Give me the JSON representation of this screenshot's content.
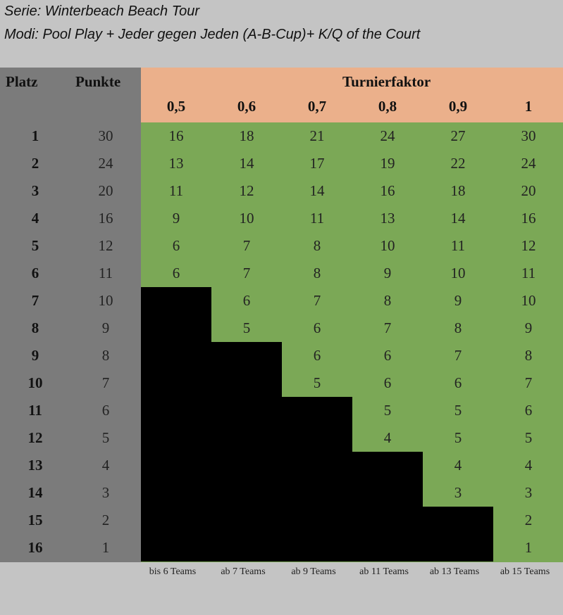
{
  "header": {
    "series_line": "Serie: Winterbeach Beach Tour",
    "modi_line": "Modi: Pool Play + Jeder gegen Jeden (A-B-Cup)+ K/Q of the Court"
  },
  "table": {
    "col_platz": "Platz",
    "col_punkte": "Punkte",
    "col_turnierfaktor": "Turnierfaktor",
    "factors": [
      "0,5",
      "0,6",
      "0,7",
      "0,8",
      "0,9",
      "1"
    ],
    "rows": [
      {
        "platz": "1",
        "punkte": "30",
        "values": [
          "16",
          "18",
          "21",
          "24",
          "27",
          "30"
        ]
      },
      {
        "platz": "2",
        "punkte": "24",
        "values": [
          "13",
          "14",
          "17",
          "19",
          "22",
          "24"
        ]
      },
      {
        "platz": "3",
        "punkte": "20",
        "values": [
          "11",
          "12",
          "14",
          "16",
          "18",
          "20"
        ]
      },
      {
        "platz": "4",
        "punkte": "16",
        "values": [
          "9",
          "10",
          "11",
          "13",
          "14",
          "16"
        ]
      },
      {
        "platz": "5",
        "punkte": "12",
        "values": [
          "6",
          "7",
          "8",
          "10",
          "11",
          "12"
        ]
      },
      {
        "platz": "6",
        "punkte": "11",
        "values": [
          "6",
          "7",
          "8",
          "9",
          "10",
          "11"
        ]
      },
      {
        "platz": "7",
        "punkte": "10",
        "values": [
          "",
          "6",
          "7",
          "8",
          "9",
          "10"
        ]
      },
      {
        "platz": "8",
        "punkte": "9",
        "values": [
          "",
          "5",
          "6",
          "7",
          "8",
          "9"
        ]
      },
      {
        "platz": "9",
        "punkte": "8",
        "values": [
          "",
          "",
          "6",
          "6",
          "7",
          "8"
        ]
      },
      {
        "platz": "10",
        "punkte": "7",
        "values": [
          "",
          "",
          "5",
          "6",
          "6",
          "7"
        ]
      },
      {
        "platz": "11",
        "punkte": "6",
        "values": [
          "",
          "",
          "",
          "5",
          "5",
          "6"
        ]
      },
      {
        "platz": "12",
        "punkte": "5",
        "values": [
          "",
          "",
          "",
          "4",
          "5",
          "5"
        ]
      },
      {
        "platz": "13",
        "punkte": "4",
        "values": [
          "",
          "",
          "",
          "",
          "4",
          "4"
        ]
      },
      {
        "platz": "14",
        "punkte": "3",
        "values": [
          "",
          "",
          "",
          "",
          "3",
          "3"
        ]
      },
      {
        "platz": "15",
        "punkte": "2",
        "values": [
          "",
          "",
          "",
          "",
          "",
          "2"
        ]
      },
      {
        "platz": "16",
        "punkte": "1",
        "values": [
          "",
          "",
          "",
          "",
          "",
          "1"
        ]
      }
    ],
    "team_labels": [
      "bis 6 Teams",
      "ab 7 Teams",
      "ab 9 Teams",
      "ab 11 Teams",
      "ab 13 Teams",
      "ab 15 Teams"
    ]
  },
  "colors": {
    "gray": "#7b7b7b",
    "orange": "#ebb08b",
    "green": "#7ba856",
    "black": "#000000",
    "background": "#c4c4c4"
  }
}
